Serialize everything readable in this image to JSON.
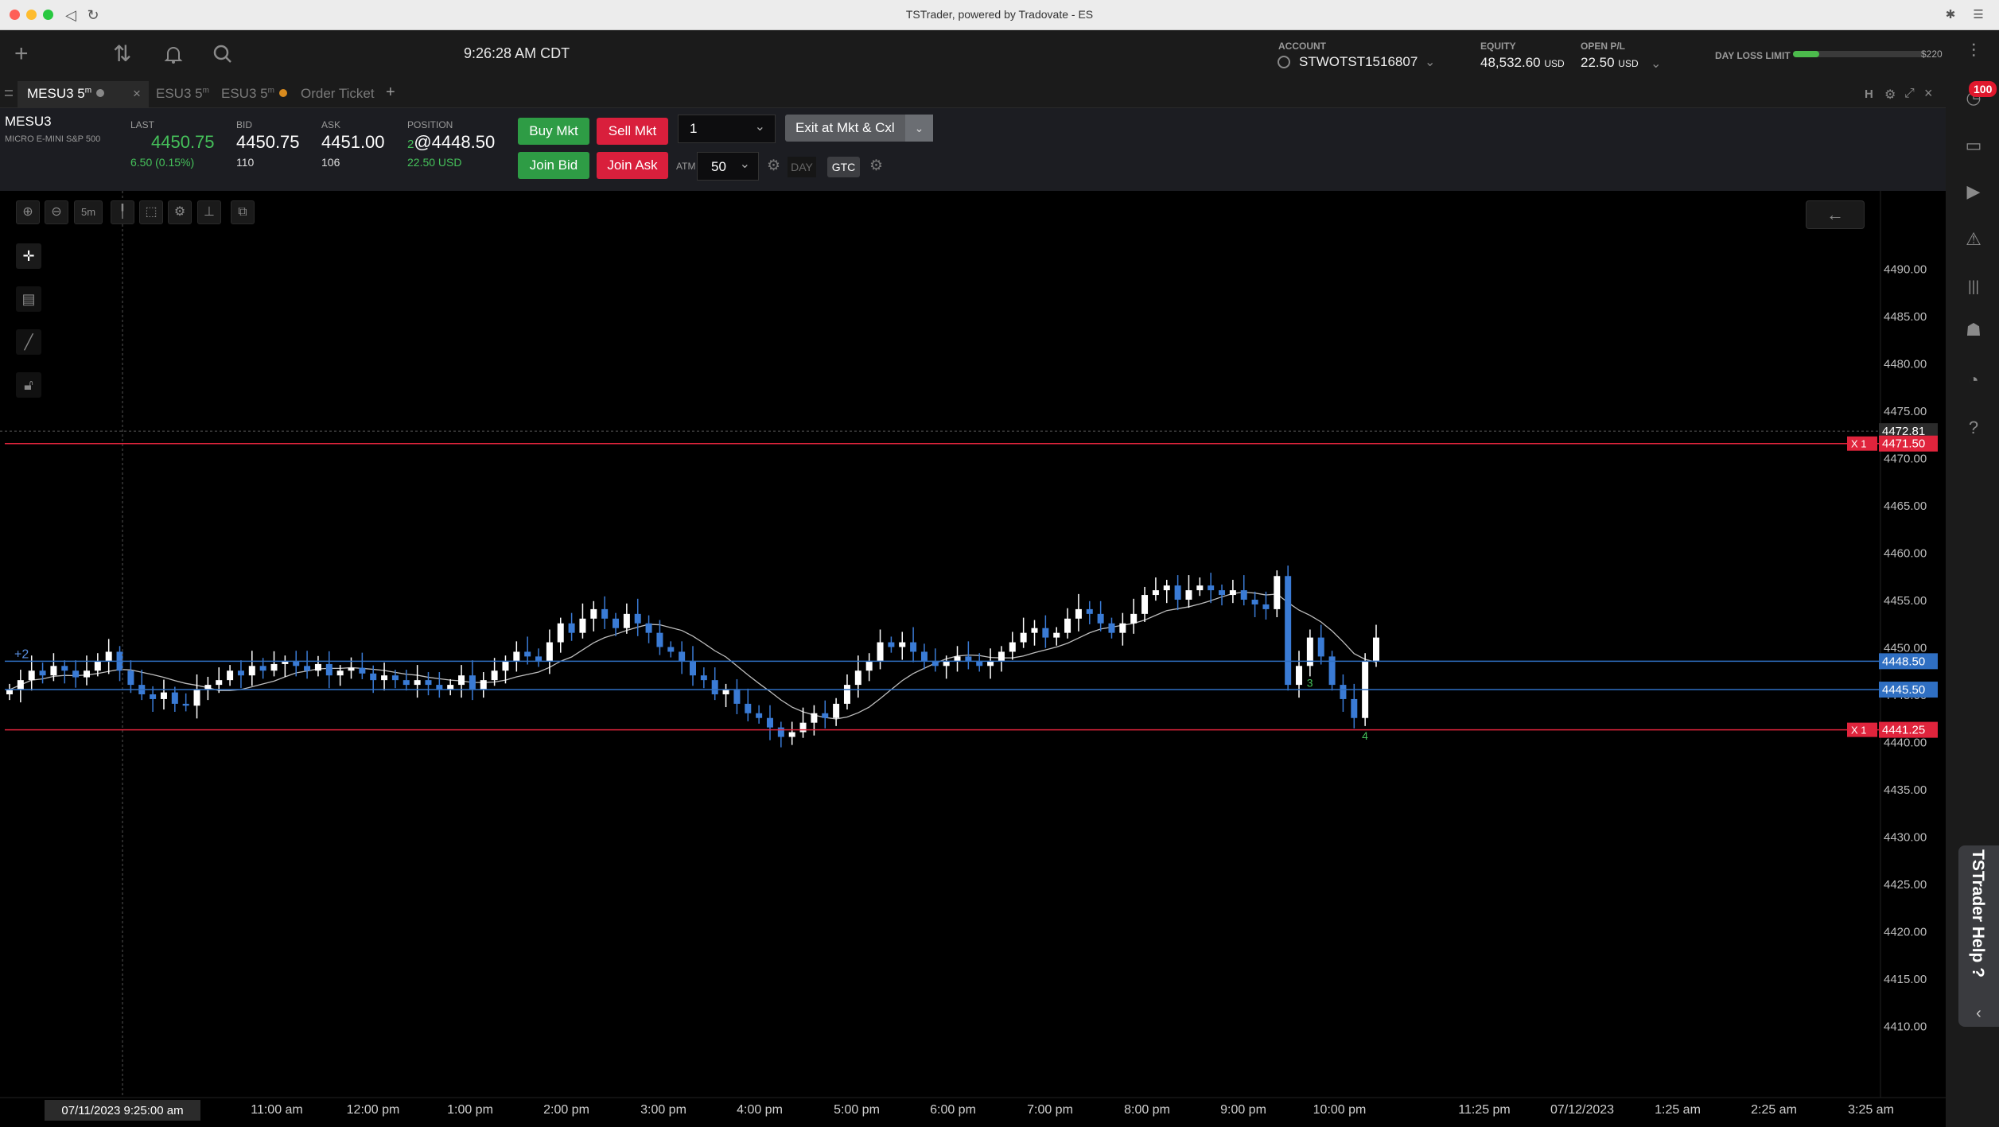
{
  "window": {
    "title": "TSTrader, powered by Tradovate - ES"
  },
  "header": {
    "time": "9:26:28 AM CDT",
    "account_label": "ACCOUNT",
    "account_value": "STWOTST1516807",
    "equity_label": "EQUITY",
    "equity_value": "48,532.60",
    "equity_unit": "USD",
    "openpl_label": "OPEN P/L",
    "openpl_value": "22.50",
    "openpl_unit": "USD",
    "dll_label": "DAY LOSS LIMIT",
    "dll_value": "$220",
    "dll_fraction": 0.2
  },
  "tabs": [
    {
      "label": "MESU3 5",
      "sup": "m"
    },
    {
      "label": "ESU3 5",
      "sup": "m"
    },
    {
      "label": "ESU3 5",
      "sup": "m"
    },
    {
      "label": "Order Ticket"
    }
  ],
  "quote": {
    "symbol": "MESU3",
    "description": "MICRO E-MINI S&P 500",
    "last_label": "LAST",
    "last_value": "4450.75",
    "last_change": "6.50 (0.15%)",
    "bid_label": "BID",
    "bid_value": "4450.75",
    "bid_size": "110",
    "ask_label": "ASK",
    "ask_value": "4451.00",
    "ask_size": "106",
    "position_label": "POSITION",
    "position_qty": "2",
    "position_price": "@4448.50",
    "position_pl": "22.50 USD"
  },
  "order": {
    "buy_mkt": "Buy Mkt",
    "sell_mkt": "Sell Mkt",
    "join_bid": "Join Bid",
    "join_ask": "Join Ask",
    "qty": "1",
    "exit": "Exit at Mkt & Cxl",
    "atm_label": "ATM",
    "atm_value": "50",
    "tif_day": "DAY",
    "tif_gtc": "GTC"
  },
  "chart_toolbar": {
    "interval": "5m"
  },
  "help": {
    "label": "TSTrader Help ?"
  },
  "notifications": {
    "badge": "100"
  },
  "colors": {
    "up": "#ffffff",
    "down": "#3a7bd5",
    "sell_line": "#e0243c",
    "pos_line": "#2f6fc2",
    "buy_green": "#2e9c45",
    "sell_red": "#d91f3c"
  },
  "chart_data": {
    "type": "candlestick",
    "symbol": "MESU3",
    "interval": "5m",
    "ylim": [
      4406,
      4494
    ],
    "y_ticks": [
      "4490.00",
      "4485.00",
      "4480.00",
      "4475.00",
      "4470.00",
      "4465.00",
      "4460.00",
      "4455.00",
      "4450.00",
      "4445.00",
      "4440.00",
      "4435.00",
      "4430.00",
      "4425.00",
      "4420.00",
      "4415.00",
      "4410.00"
    ],
    "x_ticks": [
      "11:00 am",
      "12:00 pm",
      "1:00 pm",
      "2:00 pm",
      "3:00 pm",
      "4:00 pm",
      "5:00 pm",
      "6:00 pm",
      "7:00 pm",
      "8:00 pm",
      "9:00 pm",
      "10:00 pm",
      "11:25 pm",
      "07/12/2023",
      "1:25 am",
      "2:25 am",
      "3:25 am"
    ],
    "crosshair_time": "07/11/2023 9:25:00 am",
    "crosshair_price": "4472.81",
    "position_label": "+2",
    "price_markers": [
      {
        "label": "4471.50",
        "kind": "stop",
        "tag": "X",
        "qty": "1"
      },
      {
        "label": "4448.50",
        "kind": "position"
      },
      {
        "label": "4445.50",
        "kind": "level"
      },
      {
        "label": "4441.25",
        "kind": "order",
        "tag": "X",
        "qty": "1"
      }
    ],
    "fill_labels": [
      "3",
      "4"
    ],
    "series_close": [
      4445.5,
      4446.5,
      4447.5,
      4447.0,
      4448.0,
      4447.5,
      4446.8,
      4447.5,
      4448.5,
      4449.5,
      4447.5,
      4446.0,
      4445.0,
      4444.5,
      4445.2,
      4444.0,
      4443.8,
      4445.5,
      4446.0,
      4446.5,
      4447.5,
      4447.0,
      4448.0,
      4447.5,
      4448.2,
      4448.5,
      4448.0,
      4447.5,
      4448.2,
      4447.0,
      4447.5,
      4447.8,
      4447.2,
      4446.5,
      4447.0,
      4446.5,
      4446.0,
      4446.5,
      4446.0,
      4445.5,
      4446.0,
      4447.0,
      4445.5,
      4446.5,
      4447.5,
      4448.5,
      4449.5,
      4449.0,
      4448.5,
      4450.5,
      4452.5,
      4451.5,
      4453.0,
      4454.0,
      4453.0,
      4452.0,
      4453.5,
      4452.5,
      4451.5,
      4450.0,
      4449.5,
      4448.5,
      4447.0,
      4446.5,
      4445.0,
      4445.5,
      4444.0,
      4443.0,
      4442.5,
      4441.5,
      4440.5,
      4441.0,
      4442.0,
      4443.0,
      4442.5,
      4444.0,
      4446.0,
      4447.5,
      4448.5,
      4450.5,
      4450.0,
      4450.5,
      4449.5,
      4448.5,
      4448.0,
      4448.5,
      4449.0,
      4448.5,
      4448.0,
      4448.5,
      4449.5,
      4450.5,
      4451.5,
      4452.0,
      4451.0,
      4451.5,
      4453.0,
      4454.0,
      4453.5,
      4452.5,
      4451.5,
      4452.5,
      4453.5,
      4455.5,
      4456.0,
      4456.5,
      4455.0,
      4456.0,
      4456.5,
      4456.0,
      4455.5,
      4456.0,
      4455.0,
      4454.5,
      4454.0,
      4457.5,
      4446.0,
      4448.0,
      4451.0,
      4449.0,
      4446.0,
      4444.5,
      4442.5,
      4448.5,
      4451.0
    ]
  }
}
